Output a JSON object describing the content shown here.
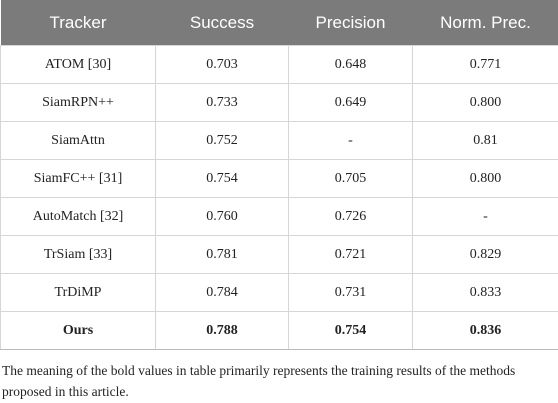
{
  "table": {
    "header": [
      "Tracker",
      "Success",
      "Precision",
      "Norm. Prec."
    ],
    "rows": [
      [
        "ATOM [30]",
        "0.703",
        "0.648",
        "0.771"
      ],
      [
        "SiamRPN++",
        "0.733",
        "0.649",
        "0.800"
      ],
      [
        "SiamAttn",
        "0.752",
        "-",
        "0.81"
      ],
      [
        "SiamFC++ [31]",
        "0.754",
        "0.705",
        "0.800"
      ],
      [
        "AutoMatch [32]",
        "0.760",
        "0.726",
        "-"
      ],
      [
        "TrSiam [33]",
        "0.781",
        "0.721",
        "0.829"
      ],
      [
        "TrDiMP",
        "0.784",
        "0.731",
        "0.833"
      ],
      [
        "Ours",
        "0.788",
        "0.754",
        "0.836"
      ]
    ]
  },
  "note": "The meaning of the bold values in table primarily represents the training results of the methods proposed in this article."
}
